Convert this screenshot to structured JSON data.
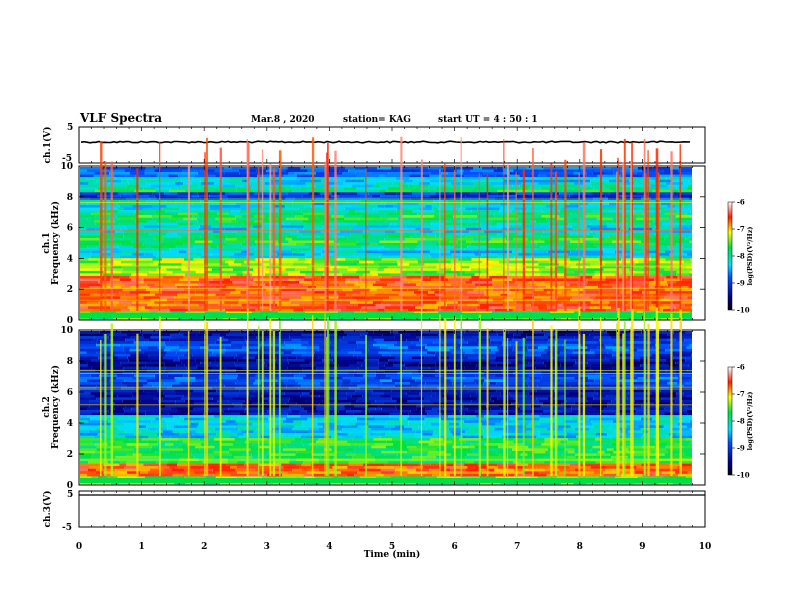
{
  "header": {
    "title": "VLF Spectra",
    "date": "Mar.8 , 2020",
    "station": "station= KAG",
    "start": "start UT = 4 : 50 : 1"
  },
  "chart_data": [
    {
      "type": "line",
      "title": "",
      "ylabel": "ch.1(V)",
      "ylim": [
        -5,
        5
      ],
      "y_ticks": [
        "5",
        "-5"
      ],
      "xlim": [
        0,
        10
      ]
    },
    {
      "type": "heatmap",
      "title": "",
      "ylabel_top": "ch.1",
      "ylabel": "Frequency (kHz)",
      "ylim": [
        0,
        10
      ],
      "y_ticks": [
        "0",
        "2",
        "4",
        "6",
        "8",
        "10"
      ],
      "xlim": [
        0,
        10
      ],
      "colorbar": {
        "label": "log(PSD)(V²/Hz)",
        "range": [
          -10,
          -6
        ],
        "ticks": [
          "-6",
          "-7",
          "-8",
          "-9",
          "-10"
        ]
      }
    },
    {
      "type": "heatmap",
      "title": "",
      "ylabel_top": "ch.2",
      "ylabel": "Frequency (kHz)",
      "ylim": [
        0,
        10
      ],
      "y_ticks": [
        "0",
        "2",
        "4",
        "6",
        "8",
        "10"
      ],
      "xlim": [
        0,
        10
      ],
      "colorbar": {
        "label": "log(PSD)(V²/Hz)",
        "range": [
          -10,
          -6
        ],
        "ticks": [
          "-6",
          "-7",
          "-8",
          "-9",
          "-10"
        ]
      }
    },
    {
      "type": "line",
      "title": "",
      "ylabel": "ch.3(V)",
      "ylim": [
        -5,
        5
      ],
      "y_ticks": [
        "5",
        "-5"
      ],
      "xlabel": "Time (min)",
      "xlim": [
        0,
        10
      ],
      "x_ticks": [
        "0",
        "1",
        "2",
        "3",
        "4",
        "5",
        "6",
        "7",
        "8",
        "9",
        "10"
      ]
    }
  ]
}
